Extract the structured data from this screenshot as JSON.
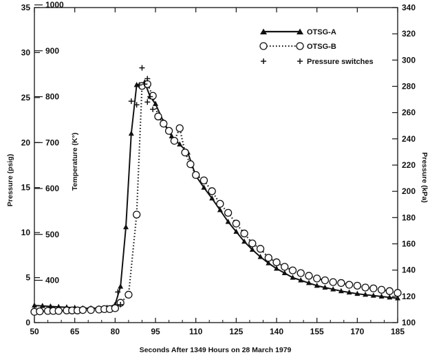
{
  "chart_data": {
    "type": "line",
    "xlabel": "Seconds After 1349 Hours on 28 March 1979",
    "ylabel_left": "Pressure (psig)",
    "ylabel_inner": "Temperature (K°)",
    "ylabel_right": "Pressure (kPa)",
    "xlim": [
      50,
      185
    ],
    "ylim_left": [
      0,
      35
    ],
    "ylim_right": [
      100,
      340
    ],
    "x_ticks": [
      "50",
      "65",
      "80",
      "95",
      "110",
      "125",
      "140",
      "155",
      "170",
      "185"
    ],
    "x_tick_values": [
      50,
      65,
      80,
      95,
      110,
      125,
      140,
      155,
      170,
      185
    ],
    "left_ticks": [
      "0",
      "5",
      "10",
      "15",
      "20",
      "25",
      "30",
      "35"
    ],
    "left_tick_values": [
      0,
      5,
      10,
      15,
      20,
      25,
      30,
      35
    ],
    "temp_ticks": [
      "400",
      "500",
      "600",
      "700",
      "800",
      "900",
      "1000"
    ],
    "temp_tick_values": [
      400,
      500,
      600,
      700,
      800,
      900,
      1000
    ],
    "temp_axis_psig_at_400": 4.7,
    "temp_axis_psig_per_100": 5.1,
    "right_ticks": [
      "100",
      "120",
      "140",
      "160",
      "180",
      "200",
      "220",
      "240",
      "260",
      "280",
      "300",
      "320",
      "340"
    ],
    "right_tick_values": [
      100,
      120,
      140,
      160,
      180,
      200,
      220,
      240,
      260,
      280,
      300,
      320,
      340
    ],
    "series": [
      {
        "name": "OTSG-A",
        "marker": "triangle",
        "line": "solid",
        "x": [
          50,
          53,
          56,
          59,
          62,
          65,
          68,
          71,
          74,
          77,
          80,
          82,
          84,
          86,
          88,
          91,
          93,
          95,
          98,
          101,
          104,
          107,
          110,
          113,
          116,
          119,
          122,
          125,
          128,
          131,
          134,
          137,
          140,
          143,
          146,
          149,
          152,
          155,
          158,
          161,
          164,
          167,
          170,
          173,
          176,
          179,
          182,
          185
        ],
        "y": [
          1.9,
          1.85,
          1.8,
          1.75,
          1.7,
          1.65,
          1.6,
          1.6,
          1.6,
          1.65,
          2.0,
          4.0,
          10.6,
          21.0,
          26.4,
          26.7,
          25.1,
          24.3,
          22.3,
          20.7,
          19.8,
          18.9,
          16.3,
          15.0,
          13.8,
          12.5,
          11.2,
          10.1,
          9.0,
          8.1,
          7.3,
          6.6,
          6.0,
          5.5,
          5.0,
          4.7,
          4.4,
          4.1,
          3.9,
          3.7,
          3.5,
          3.35,
          3.2,
          3.1,
          3.0,
          2.9,
          2.8,
          2.7
        ]
      },
      {
        "name": "OTSG-B",
        "marker": "circle",
        "line": "dotted",
        "x": [
          50,
          52,
          55,
          57,
          59,
          62,
          64,
          66,
          68,
          71,
          74,
          76,
          78,
          80,
          82,
          85,
          88,
          90,
          92,
          94,
          96,
          98,
          100,
          102,
          104,
          106,
          108,
          110,
          113,
          116,
          119,
          122,
          125,
          128,
          131,
          134,
          137,
          140,
          143,
          146,
          149,
          152,
          155,
          158,
          161,
          164,
          167,
          170,
          173,
          176,
          179,
          182,
          185
        ],
        "y": [
          1.2,
          1.25,
          1.3,
          1.3,
          1.3,
          1.35,
          1.35,
          1.35,
          1.4,
          1.4,
          1.45,
          1.5,
          1.5,
          1.6,
          2.2,
          3.1,
          12.0,
          26.3,
          26.5,
          25.2,
          22.9,
          22.1,
          21.3,
          20.2,
          21.6,
          18.9,
          17.6,
          16.4,
          15.8,
          14.6,
          13.2,
          12.2,
          11.0,
          9.9,
          8.8,
          8.2,
          7.2,
          6.7,
          6.2,
          5.8,
          5.5,
          5.2,
          4.9,
          4.7,
          4.5,
          4.4,
          4.2,
          4.1,
          3.9,
          3.8,
          3.65,
          3.5,
          3.3
        ]
      },
      {
        "name": "Pressure switches",
        "marker": "plus",
        "line": "none",
        "x": [
          81,
          82,
          86,
          88,
          89,
          90,
          91,
          92,
          92,
          93,
          94
        ],
        "y": [
          3.4,
          2.0,
          24.6,
          24.2,
          26.4,
          28.3,
          26.5,
          24.5,
          27.1,
          25.1,
          23.7
        ]
      }
    ],
    "legend": {
      "position": "top-right",
      "entries": [
        "OTSG-A",
        "OTSG-B",
        "Pressure switches"
      ]
    }
  }
}
